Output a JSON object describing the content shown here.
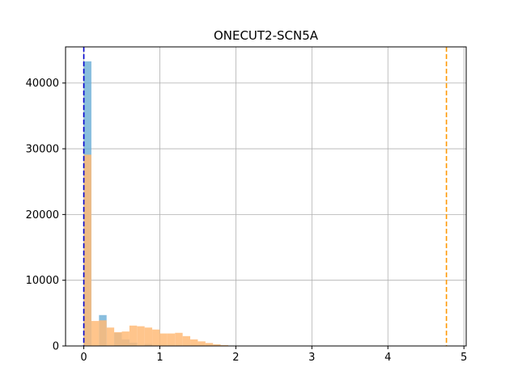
{
  "chart_data": {
    "type": "bar",
    "title": "ONECUT2-SCN5A",
    "xlabel": "",
    "ylabel": "",
    "xlim": [
      -0.24,
      5.03
    ],
    "ylim": [
      0,
      45500
    ],
    "xticks": [
      0,
      1,
      2,
      3,
      4,
      5
    ],
    "yticks": [
      0,
      10000,
      20000,
      30000,
      40000
    ],
    "grid": true,
    "series": [
      {
        "color": "#6baed6",
        "alpha": 0.8,
        "bin_width": 0.1,
        "bins": [
          {
            "x0": 0.0,
            "value": 43300
          },
          {
            "x0": 0.2,
            "value": 4700
          },
          {
            "x0": 0.4,
            "value": 2000
          },
          {
            "x0": 0.5,
            "value": 1000
          },
          {
            "x0": 0.6,
            "value": 500
          },
          {
            "x0": 0.8,
            "value": 300
          }
        ]
      },
      {
        "color": "#ffbb78",
        "alpha": 0.85,
        "bin_width": 0.1,
        "bins": [
          {
            "x0": 0.0,
            "value": 29100
          },
          {
            "x0": 0.1,
            "value": 3800
          },
          {
            "x0": 0.2,
            "value": 3900
          },
          {
            "x0": 0.3,
            "value": 2800
          },
          {
            "x0": 0.4,
            "value": 2100
          },
          {
            "x0": 0.5,
            "value": 2200
          },
          {
            "x0": 0.6,
            "value": 3100
          },
          {
            "x0": 0.7,
            "value": 3000
          },
          {
            "x0": 0.8,
            "value": 2800
          },
          {
            "x0": 0.9,
            "value": 2500
          },
          {
            "x0": 1.0,
            "value": 1900
          },
          {
            "x0": 1.1,
            "value": 1900
          },
          {
            "x0": 1.2,
            "value": 2000
          },
          {
            "x0": 1.3,
            "value": 1500
          },
          {
            "x0": 1.4,
            "value": 1000
          },
          {
            "x0": 1.5,
            "value": 700
          },
          {
            "x0": 1.6,
            "value": 450
          },
          {
            "x0": 1.7,
            "value": 250
          },
          {
            "x0": 1.8,
            "value": 120
          },
          {
            "x0": 1.9,
            "value": 60
          },
          {
            "x0": 2.0,
            "value": 30
          },
          {
            "x0": 2.1,
            "value": 10
          }
        ]
      }
    ],
    "vlines": [
      {
        "x": 0.0,
        "color": "#0000cc",
        "style": "dashed"
      },
      {
        "x": 4.77,
        "color": "#ff9900",
        "style": "dashed"
      }
    ]
  }
}
